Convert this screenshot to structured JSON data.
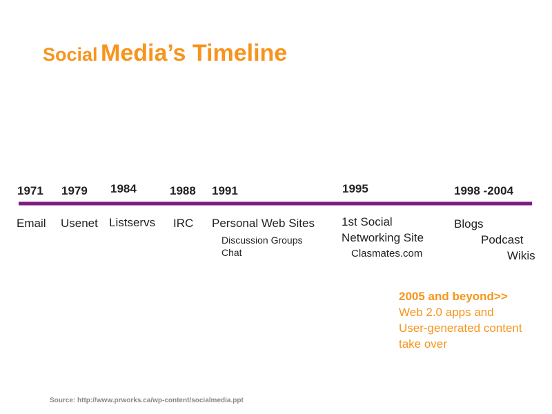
{
  "title": {
    "part1": "Social",
    "part2": "Media’s Timeline"
  },
  "accent": "#f7941d",
  "line_color": "#7d1c80",
  "events": [
    {
      "year": "1971",
      "label": "Email"
    },
    {
      "year": "1979",
      "label": "Usenet"
    },
    {
      "year": "1984",
      "label": "Listservs"
    },
    {
      "year": "1988",
      "label": "IRC"
    },
    {
      "year": "1991",
      "label": "Personal Web Sites",
      "sub": [
        "Discussion Groups",
        "Chat"
      ]
    },
    {
      "year": "1995",
      "label": "1st Social",
      "label2": "Networking Site",
      "sub": [
        "Clasmates.com"
      ]
    },
    {
      "year": "1998 -2004",
      "label": "Blogs",
      "label2": "Podcast",
      "label3": "Wikis"
    }
  ],
  "future": {
    "heading": "2005 and beyond>>",
    "lines": [
      "Web 2.0 apps and",
      "User-generated content",
      "take over"
    ]
  },
  "source": "Source: http://www.prworks.ca/wp-content/socialmedia.ppt"
}
